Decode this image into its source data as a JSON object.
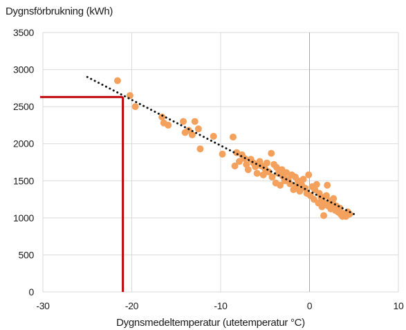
{
  "chart_data": {
    "type": "scatter",
    "ylabel": "Dygnsförbrukning (kWh)",
    "xlabel": "Dygnsmedeltemperatur (utetemperatur °C)",
    "xlim": [
      -30,
      10
    ],
    "ylim": [
      0,
      3500
    ],
    "xticks": [
      -30,
      -20,
      -10,
      0,
      10
    ],
    "yticks": [
      0,
      500,
      1000,
      1500,
      2000,
      2500,
      3000,
      3500
    ],
    "x_tick_labels": [
      "-30",
      "-20",
      "-10",
      "0",
      "10"
    ],
    "y_tick_labels": [
      "0",
      "500",
      "1000",
      "1500",
      "2000",
      "2500",
      "3000",
      "3500"
    ],
    "grid": true,
    "colors": {
      "points": "#f4a15d",
      "trendline": "#111111",
      "reference": "#c00000",
      "grid": "#d9d9d9",
      "zero_line": "#a6a6a6"
    },
    "trendline": {
      "x": [
        -25,
        5
      ],
      "y": [
        2900,
        1050
      ]
    },
    "reference_line": {
      "x": -21,
      "y": 2630
    },
    "points": [
      [
        -21.6,
        2850
      ],
      [
        -20.2,
        2650
      ],
      [
        -19.6,
        2500
      ],
      [
        -16.6,
        2360
      ],
      [
        -16.4,
        2280
      ],
      [
        -15.9,
        2250
      ],
      [
        -14.2,
        2300
      ],
      [
        -14.0,
        2150
      ],
      [
        -13.6,
        2180
      ],
      [
        -13.2,
        2120
      ],
      [
        -12.9,
        2300
      ],
      [
        -12.5,
        2200
      ],
      [
        -12.3,
        1930
      ],
      [
        -10.8,
        2100
      ],
      [
        -9.8,
        1860
      ],
      [
        -8.6,
        2090
      ],
      [
        -8.4,
        1700
      ],
      [
        -8.2,
        1880
      ],
      [
        -7.9,
        1760
      ],
      [
        -7.6,
        1850
      ],
      [
        -7.3,
        1800
      ],
      [
        -7.1,
        1720
      ],
      [
        -6.9,
        1650
      ],
      [
        -6.6,
        1790
      ],
      [
        -6.3,
        1740
      ],
      [
        -6.1,
        1690
      ],
      [
        -5.9,
        1600
      ],
      [
        -5.6,
        1760
      ],
      [
        -5.4,
        1700
      ],
      [
        -5.2,
        1580
      ],
      [
        -5.0,
        1660
      ],
      [
        -4.8,
        1740
      ],
      [
        -4.6,
        1620
      ],
      [
        -4.3,
        1870
      ],
      [
        -4.2,
        1550
      ],
      [
        -4.0,
        1720
      ],
      [
        -3.8,
        1470
      ],
      [
        -3.7,
        1680
      ],
      [
        -3.5,
        1600
      ],
      [
        -3.3,
        1440
      ],
      [
        -3.1,
        1650
      ],
      [
        -3.0,
        1560
      ],
      [
        -2.8,
        1500
      ],
      [
        -2.6,
        1610
      ],
      [
        -2.4,
        1520
      ],
      [
        -2.2,
        1460
      ],
      [
        -2.0,
        1580
      ],
      [
        -1.8,
        1380
      ],
      [
        -1.6,
        1550
      ],
      [
        -1.5,
        1420
      ],
      [
        -1.3,
        1500
      ],
      [
        -1.1,
        1360
      ],
      [
        -0.9,
        1450
      ],
      [
        -0.7,
        1520
      ],
      [
        -0.5,
        1400
      ],
      [
        -0.3,
        1330
      ],
      [
        -0.1,
        1580
      ],
      [
        0.1,
        1300
      ],
      [
        0.3,
        1420
      ],
      [
        0.5,
        1250
      ],
      [
        0.6,
        1380
      ],
      [
        0.8,
        1450
      ],
      [
        1.0,
        1200
      ],
      [
        1.1,
        1330
      ],
      [
        1.3,
        1280
      ],
      [
        1.4,
        1150
      ],
      [
        1.5,
        1220
      ],
      [
        1.6,
        1030
      ],
      [
        1.8,
        1180
      ],
      [
        1.9,
        1300
      ],
      [
        2.0,
        1440
      ],
      [
        2.1,
        1160
      ],
      [
        2.3,
        1230
      ],
      [
        2.4,
        1120
      ],
      [
        2.6,
        1200
      ],
      [
        2.7,
        1260
      ],
      [
        2.9,
        1100
      ],
      [
        3.0,
        1160
      ],
      [
        3.2,
        1080
      ],
      [
        3.4,
        1130
      ],
      [
        3.5,
        1050
      ],
      [
        3.7,
        1020
      ],
      [
        3.9,
        1060
      ],
      [
        4.1,
        1020
      ],
      [
        4.3,
        1080
      ],
      [
        4.5,
        1050
      ]
    ]
  }
}
